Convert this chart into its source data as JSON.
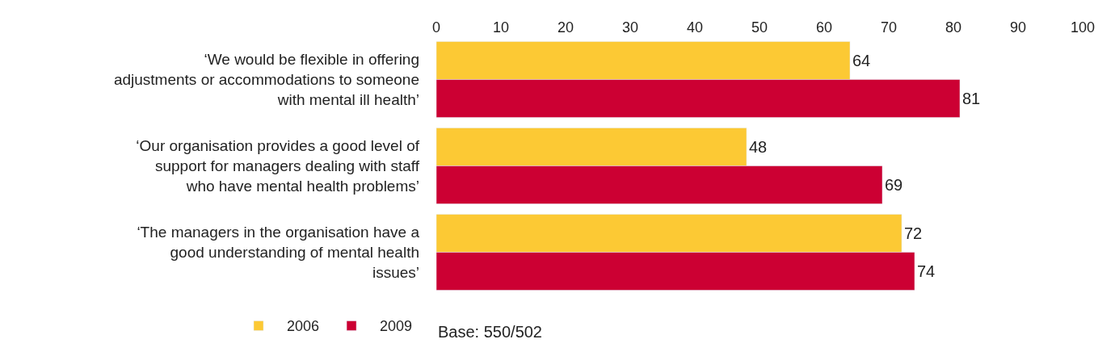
{
  "chart_data": {
    "type": "bar",
    "orientation": "horizontal",
    "categories": [
      "‘We would be flexible in offering adjustments or accommodations to someone with mental ill health’",
      "‘Our organisation provides a good level of support for managers dealing with staff who have mental health problems’",
      "‘The managers in the organisation have a good understanding of mental health issues’"
    ],
    "series": [
      {
        "name": "2006",
        "color": "#fcc934",
        "values": [
          64,
          48,
          72
        ]
      },
      {
        "name": "2009",
        "color": "#cc0033",
        "values": [
          81,
          69,
          74
        ]
      }
    ],
    "xlim": [
      0,
      100
    ],
    "xticks": [
      0,
      10,
      20,
      30,
      40,
      50,
      60,
      70,
      80,
      90,
      100
    ],
    "data_labels": true,
    "legend": "bottom left",
    "annotations": [
      "Base: 550/502"
    ]
  }
}
